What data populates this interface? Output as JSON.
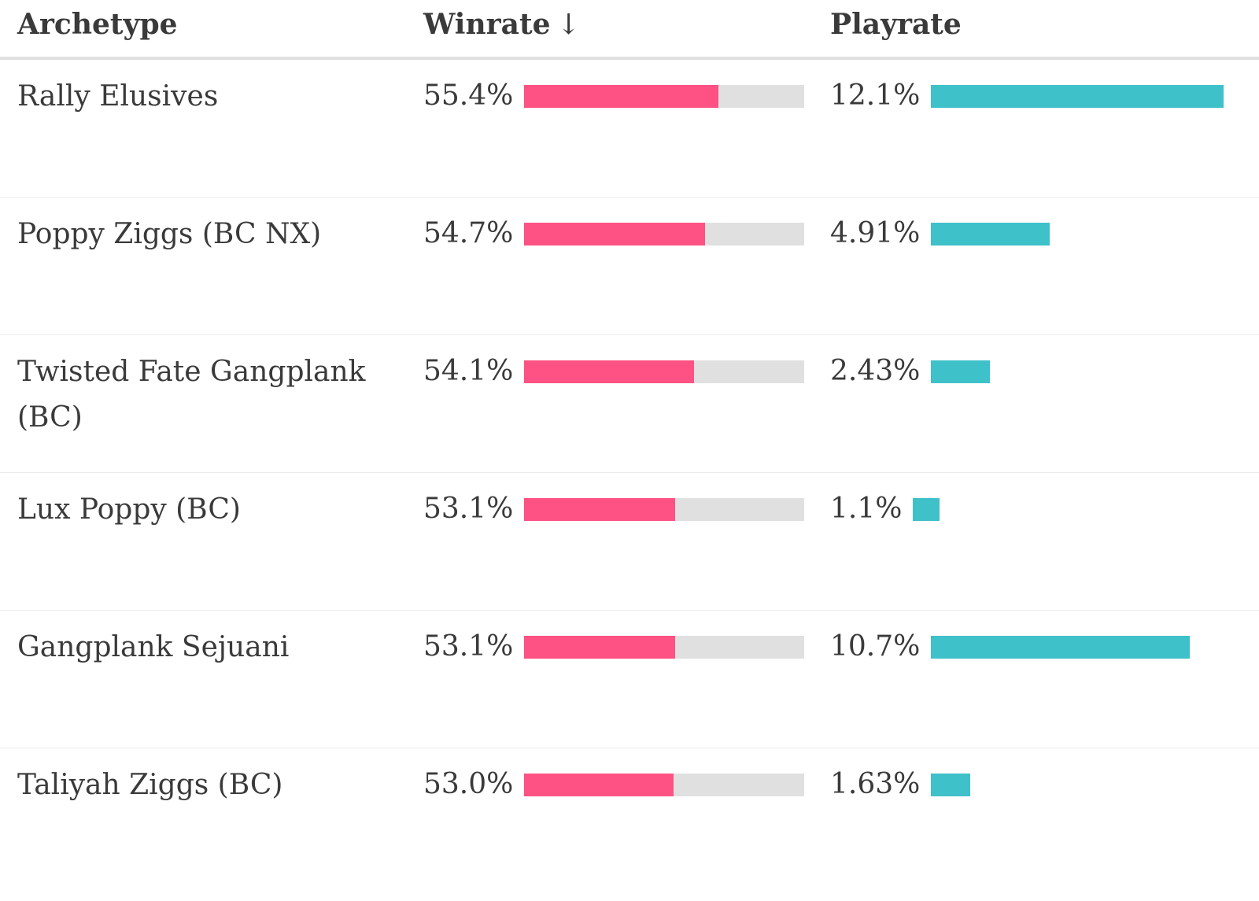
{
  "table": {
    "headers": {
      "archetype": "Archetype",
      "winrate": "Winrate",
      "winrate_sort_icon": "↓",
      "playrate": "Playrate"
    }
  },
  "colors": {
    "winrate_bar": "#fe5284",
    "winrate_track": "#e0e0e0",
    "playrate_bar": "#3fc1c9"
  },
  "chart_data": {
    "type": "table",
    "columns": [
      "Archetype",
      "Winrate",
      "Playrate"
    ],
    "sort": {
      "column": "Winrate",
      "direction": "descending"
    },
    "winrate_bar_scale": [
      0.45,
      0.6
    ],
    "playrate_bar_max": 12.1,
    "rows": [
      {
        "archetype": "Rally Elusives",
        "winrate": 55.4,
        "winrate_label": "55.4%",
        "playrate": 12.1,
        "playrate_label": "12.1%"
      },
      {
        "archetype": "Poppy Ziggs (BC NX)",
        "winrate": 54.7,
        "winrate_label": "54.7%",
        "playrate": 4.91,
        "playrate_label": "4.91%"
      },
      {
        "archetype": "Twisted Fate Gangplank (BC)",
        "winrate": 54.1,
        "winrate_label": "54.1%",
        "playrate": 2.43,
        "playrate_label": "2.43%"
      },
      {
        "archetype": "Lux Poppy (BC)",
        "winrate": 53.1,
        "winrate_label": "53.1%",
        "playrate": 1.1,
        "playrate_label": "1.1%"
      },
      {
        "archetype": "Gangplank Sejuani",
        "winrate": 53.1,
        "winrate_label": "53.1%",
        "playrate": 10.7,
        "playrate_label": "10.7%"
      },
      {
        "archetype": "Taliyah Ziggs (BC)",
        "winrate": 53.0,
        "winrate_label": "53.0%",
        "playrate": 1.63,
        "playrate_label": "1.63%"
      }
    ]
  }
}
